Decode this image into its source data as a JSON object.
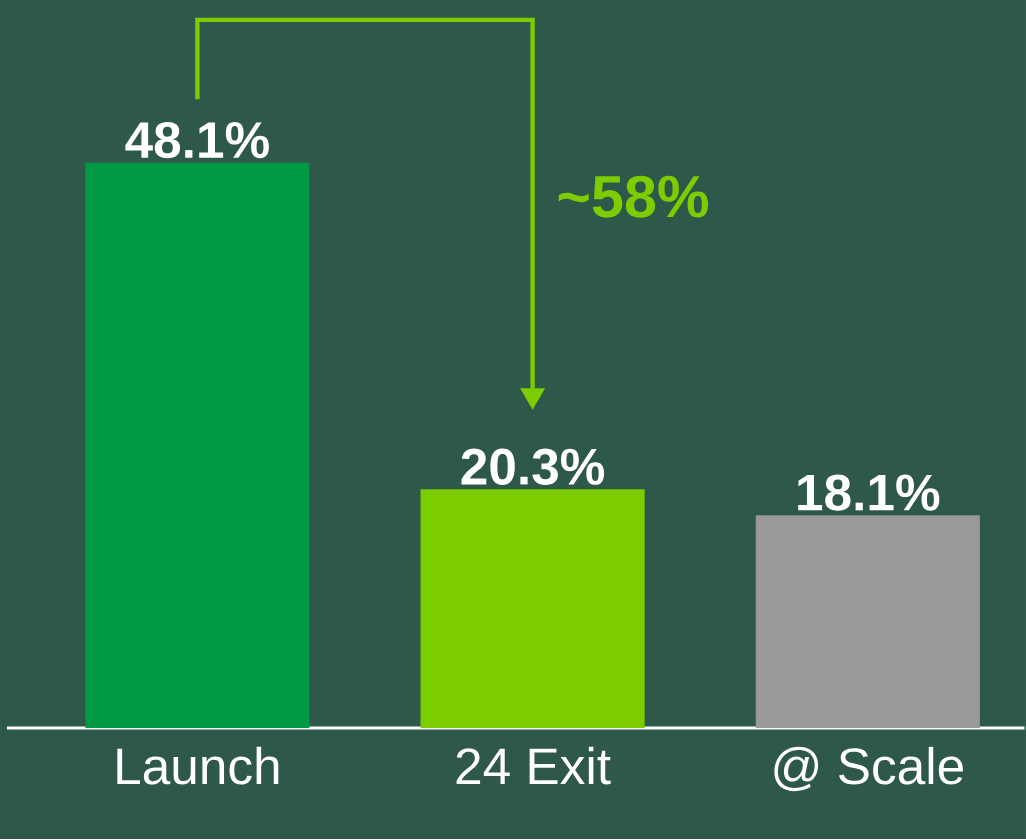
{
  "chart_data": {
    "type": "bar",
    "categories": [
      "Launch",
      "24 Exit",
      "@ Scale"
    ],
    "values": [
      48.1,
      20.3,
      18.1
    ],
    "value_labels": [
      "48.1%",
      "20.3%",
      "18.1%"
    ],
    "colors": [
      "#009a44",
      "#7ccd00",
      "#999999"
    ],
    "annotations": [
      "~58%"
    ]
  }
}
